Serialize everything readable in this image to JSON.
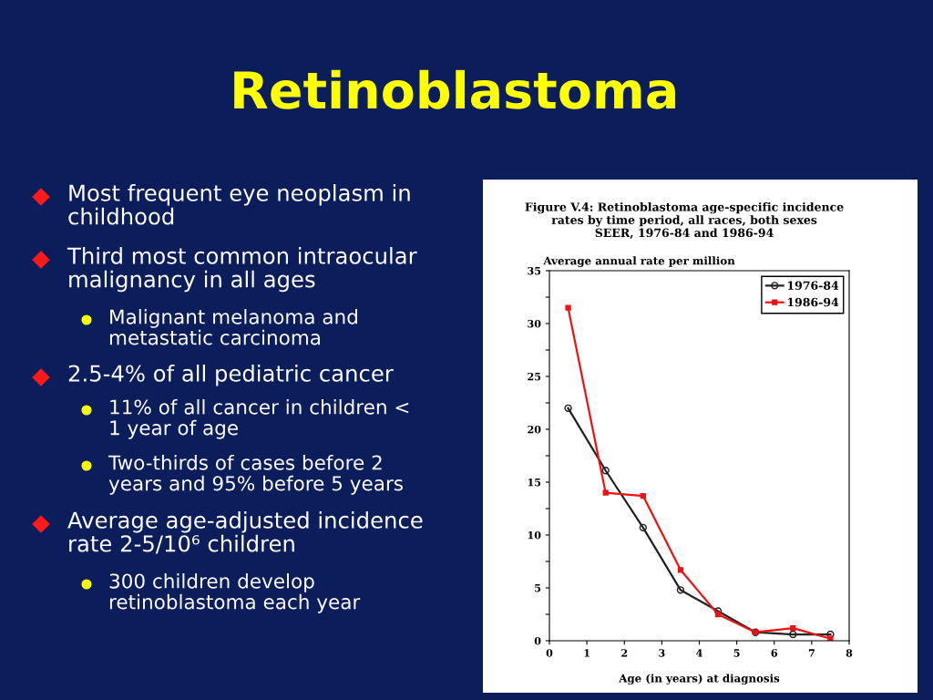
{
  "chart_data": [
    {
      "type": "other",
      "title": "Retinoblastoma",
      "annotations": [
        "Most frequent eye neoplasm in\nchildhood",
        "Third most common intraocular\nmalignancy in all ages",
        "Malignant melanoma and\nmetastatic carcinoma",
        "2.5-4% of all pediatric cancer",
        "11% of all cancer in children <\n1 year of age",
        "Two-thirds of cases before 2\nyears and 95% before 5 years",
        "Average age-adjusted incidence\nrate 2-5/10⁶ children",
        "300 children develop\nretinoblastoma each year"
      ]
    },
    {
      "type": "line",
      "title": "Figure V.4: Retinoblastoma age-specific incidence\nrates by time period, all races, both sexes\nSEER, 1976-84 and 1986-94",
      "ylabel": "Average annual rate per million",
      "xlabel": "Age (in years) at diagnosis",
      "x": [
        0.5,
        1.5,
        2.5,
        3.5,
        4.5,
        5.5,
        6.5,
        7.5
      ],
      "series": [
        {
          "name": "1976-84",
          "color": "#222222",
          "marker": "circle",
          "values": [
            22.0,
            16.1,
            10.7,
            4.8,
            2.8,
            0.8,
            0.6,
            0.6
          ]
        },
        {
          "name": "1986-94",
          "color": "#ee1111",
          "marker": "square",
          "values": [
            31.5,
            14.0,
            13.7,
            6.7,
            2.5,
            0.8,
            1.2,
            0.2
          ]
        }
      ],
      "xlim": [
        0,
        8
      ],
      "xticks": [
        0,
        1,
        2,
        3,
        4,
        5,
        6,
        7,
        8
      ],
      "ylim": [
        0,
        35
      ],
      "yticks": [
        0,
        {
          "value": 2.5,
          "label": null
        },
        5,
        {
          "value": 7.5,
          "label": null
        },
        10,
        {
          "value": 12.5,
          "label": null
        },
        15,
        {
          "value": 17.5,
          "label": null
        },
        20,
        {
          "value": 22.5,
          "label": null
        },
        25,
        {
          "value": 27.5,
          "label": null
        },
        30,
        {
          "value": 32.5,
          "label": null
        },
        35
      ],
      "grid": false,
      "legend": "top right",
      "line_style": "solid"
    }
  ]
}
